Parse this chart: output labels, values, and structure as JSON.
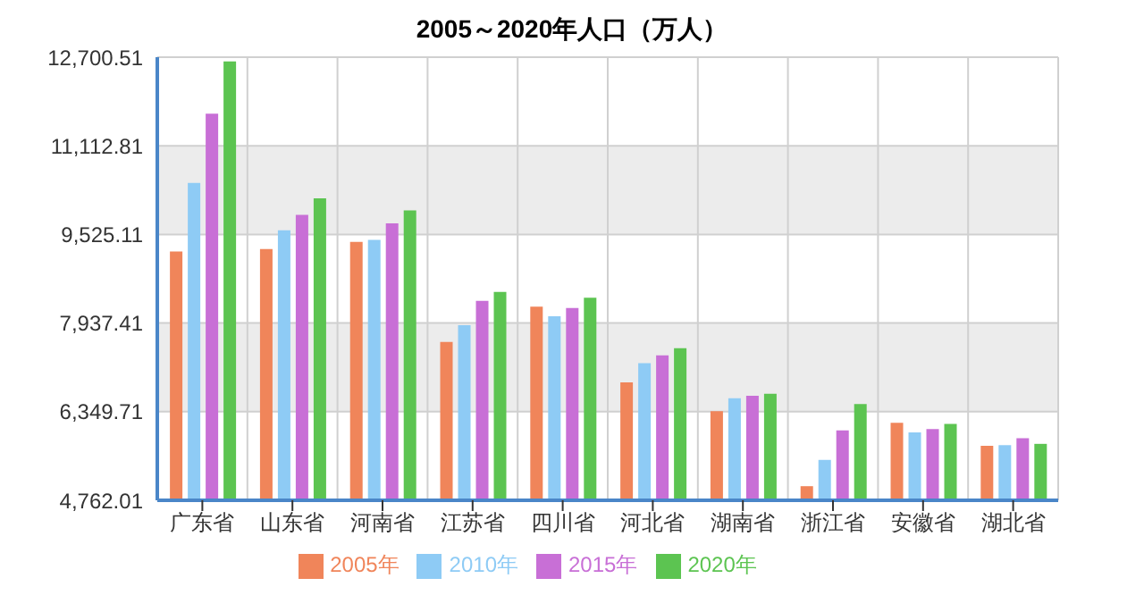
{
  "chart_data": {
    "type": "bar",
    "title": "2005～2020年人口（万人）",
    "categories": [
      "广东省",
      "山东省",
      "河南省",
      "江苏省",
      "四川省",
      "河北省",
      "湖南省",
      "浙江省",
      "安徽省",
      "湖北省"
    ],
    "series": [
      {
        "name": "2005年",
        "color": "#f0855a",
        "values": [
          9219,
          9265,
          9392,
          7600,
          8231,
          6876,
          6359,
          5015,
          6152,
          5738
        ]
      },
      {
        "name": "2010年",
        "color": "#8ecbf5",
        "values": [
          10449,
          9599,
          9426,
          7898,
          8059,
          7220,
          6589,
          5486,
          5980,
          5750
        ]
      },
      {
        "name": "2015年",
        "color": "#c86fd6",
        "values": [
          11689,
          9874,
          9725,
          8335,
          8208,
          7358,
          6635,
          6014,
          6037,
          5876
        ]
      },
      {
        "name": "2020年",
        "color": "#5cc451",
        "values": [
          12624,
          10173,
          9955,
          8496,
          8392,
          7485,
          6669,
          6485,
          6129,
          5773
        ]
      }
    ],
    "ylim": [
      4762.01,
      12700.51
    ],
    "yticks": [
      {
        "value": 4762.01,
        "label": "4,762.01"
      },
      {
        "value": 6349.71,
        "label": "6,349.71"
      },
      {
        "value": 7937.41,
        "label": "7,937.41"
      },
      {
        "value": 9525.11,
        "label": "9,525.11"
      },
      {
        "value": 11112.81,
        "label": "11,112.81"
      },
      {
        "value": 12700.51,
        "label": "12,700.51"
      }
    ],
    "grid": true,
    "legend": "bottom"
  }
}
